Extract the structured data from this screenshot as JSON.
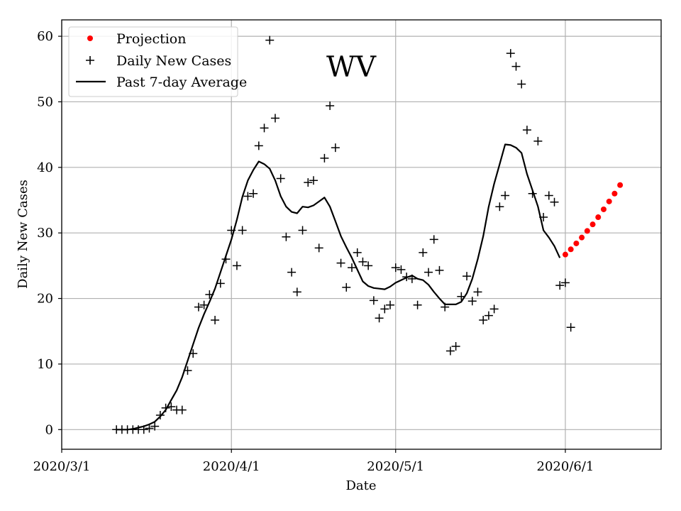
{
  "chart_data": {
    "type": "scatter+line",
    "title": "WV",
    "xlabel": "Date",
    "ylabel": "Daily New Cases",
    "x_ticks": [
      {
        "day": 0,
        "label": "2020/3/1"
      },
      {
        "day": 31,
        "label": "2020/4/1"
      },
      {
        "day": 61,
        "label": "2020/5/1"
      },
      {
        "day": 92,
        "label": "2020/6/1"
      }
    ],
    "y_ticks": [
      0,
      10,
      20,
      30,
      40,
      50,
      60
    ],
    "xlim": [
      0,
      109.5
    ],
    "ylim": [
      -3,
      62.5
    ],
    "grid": true,
    "legend_position": "top-left",
    "legend": [
      "Projection",
      "Daily New Cases",
      "Past 7-day Average"
    ],
    "colors": {
      "projection": "#ff0000",
      "daily": "#000000",
      "average": "#000000",
      "grid": "#b0b0b0"
    },
    "series": [
      {
        "name": "Daily New Cases",
        "style": "plus-marker",
        "points": [
          [
            10,
            0
          ],
          [
            11,
            0
          ],
          [
            12,
            0
          ],
          [
            13,
            0
          ],
          [
            14,
            0
          ],
          [
            15,
            0
          ],
          [
            16,
            0.2
          ],
          [
            17,
            0.5
          ],
          [
            18,
            2.2
          ],
          [
            19,
            3.3
          ],
          [
            20,
            3.5
          ],
          [
            21,
            3
          ],
          [
            22,
            3
          ],
          [
            23,
            9
          ],
          [
            24,
            11.6
          ],
          [
            25,
            18.7
          ],
          [
            26,
            19
          ],
          [
            27,
            20.6
          ],
          [
            28,
            16.7
          ],
          [
            29,
            22.3
          ],
          [
            30,
            26
          ],
          [
            31,
            30.4
          ],
          [
            32,
            25
          ],
          [
            33,
            30.4
          ],
          [
            34,
            35.6
          ],
          [
            35,
            36
          ],
          [
            36,
            43.3
          ],
          [
            37,
            46
          ],
          [
            38,
            59.4
          ],
          [
            39,
            47.5
          ],
          [
            40,
            38.3
          ],
          [
            41,
            29.4
          ],
          [
            42,
            24
          ],
          [
            43,
            21
          ],
          [
            44,
            30.4
          ],
          [
            45,
            37.7
          ],
          [
            46,
            38
          ],
          [
            47,
            27.7
          ],
          [
            48,
            41.4
          ],
          [
            49,
            49.4
          ],
          [
            50,
            43
          ],
          [
            51,
            25.4
          ],
          [
            52,
            21.7
          ],
          [
            53,
            24.7
          ],
          [
            54,
            27
          ],
          [
            55,
            25.6
          ],
          [
            56,
            25
          ],
          [
            57,
            19.7
          ],
          [
            58,
            17
          ],
          [
            59,
            18.4
          ],
          [
            60,
            19
          ],
          [
            61,
            24.7
          ],
          [
            62,
            24.4
          ],
          [
            63,
            23.3
          ],
          [
            64,
            23
          ],
          [
            65,
            19
          ],
          [
            66,
            27
          ],
          [
            67,
            24
          ],
          [
            68,
            29
          ],
          [
            69,
            24.3
          ],
          [
            70,
            18.7
          ],
          [
            71,
            12
          ],
          [
            72,
            12.7
          ],
          [
            73,
            20.3
          ],
          [
            74,
            23.4
          ],
          [
            75,
            19.6
          ],
          [
            76,
            21
          ],
          [
            77,
            16.7
          ],
          [
            78,
            17.4
          ],
          [
            79,
            18.4
          ],
          [
            80,
            34
          ],
          [
            81,
            35.7
          ],
          [
            82,
            57.4
          ],
          [
            83,
            55.4
          ],
          [
            84,
            52.7
          ],
          [
            85,
            45.7
          ],
          [
            86,
            36
          ],
          [
            87,
            44
          ],
          [
            88,
            32.4
          ],
          [
            89,
            35.7
          ],
          [
            90,
            34.7
          ],
          [
            91,
            22
          ],
          [
            92,
            22.4
          ],
          [
            93,
            15.6
          ]
        ]
      },
      {
        "name": "Past 7-day Average",
        "style": "line",
        "points": [
          [
            10,
            0
          ],
          [
            11,
            0
          ],
          [
            12,
            0
          ],
          [
            13,
            0.1
          ],
          [
            14,
            0.3
          ],
          [
            15,
            0.5
          ],
          [
            16,
            0.8
          ],
          [
            17,
            1.2
          ],
          [
            18,
            2
          ],
          [
            19,
            3
          ],
          [
            20,
            4.5
          ],
          [
            21,
            6
          ],
          [
            22,
            8
          ],
          [
            23,
            10.5
          ],
          [
            24,
            13
          ],
          [
            25,
            15.5
          ],
          [
            26,
            17.6
          ],
          [
            27,
            19.5
          ],
          [
            28,
            21.5
          ],
          [
            29,
            24
          ],
          [
            30,
            26.5
          ],
          [
            31,
            29
          ],
          [
            32,
            32
          ],
          [
            33,
            35.5
          ],
          [
            34,
            38
          ],
          [
            35,
            39.6
          ],
          [
            36,
            40.9
          ],
          [
            37,
            40.5
          ],
          [
            38,
            39.8
          ],
          [
            39,
            38
          ],
          [
            40,
            35.6
          ],
          [
            41,
            34
          ],
          [
            42,
            33.2
          ],
          [
            43,
            33
          ],
          [
            44,
            34
          ],
          [
            45,
            33.9
          ],
          [
            46,
            34.2
          ],
          [
            47,
            34.8
          ],
          [
            48,
            35.4
          ],
          [
            49,
            34
          ],
          [
            50,
            31.8
          ],
          [
            51,
            29.5
          ],
          [
            52,
            27.8
          ],
          [
            53,
            26.2
          ],
          [
            54,
            24.4
          ],
          [
            55,
            22.6
          ],
          [
            56,
            21.9
          ],
          [
            57,
            21.6
          ],
          [
            58,
            21.5
          ],
          [
            59,
            21.4
          ],
          [
            60,
            21.8
          ],
          [
            61,
            22.4
          ],
          [
            62,
            22.8
          ],
          [
            63,
            23.2
          ],
          [
            64,
            23.5
          ],
          [
            65,
            23
          ],
          [
            66,
            22.8
          ],
          [
            67,
            22.1
          ],
          [
            68,
            21
          ],
          [
            69,
            20
          ],
          [
            70,
            19.1
          ],
          [
            71,
            19.1
          ],
          [
            72,
            19.1
          ],
          [
            73,
            19.5
          ],
          [
            74,
            20.8
          ],
          [
            75,
            23
          ],
          [
            76,
            26
          ],
          [
            77,
            29.5
          ],
          [
            78,
            34
          ],
          [
            79,
            37.5
          ],
          [
            80,
            40.5
          ],
          [
            81,
            43.5
          ],
          [
            82,
            43.4
          ],
          [
            83,
            43
          ],
          [
            84,
            42.2
          ],
          [
            85,
            39
          ],
          [
            86,
            36.5
          ],
          [
            87,
            34
          ],
          [
            88,
            30.4
          ],
          [
            89,
            29.3
          ],
          [
            90,
            28
          ],
          [
            91,
            26.2
          ]
        ]
      },
      {
        "name": "Projection",
        "style": "dot",
        "points": [
          [
            92,
            26.7
          ],
          [
            93,
            27.5
          ],
          [
            94,
            28.4
          ],
          [
            95,
            29.3
          ],
          [
            96,
            30.3
          ],
          [
            97,
            31.3
          ],
          [
            98,
            32.4
          ],
          [
            99,
            33.6
          ],
          [
            100,
            34.8
          ],
          [
            101,
            36
          ],
          [
            102,
            37.3
          ]
        ]
      }
    ]
  }
}
